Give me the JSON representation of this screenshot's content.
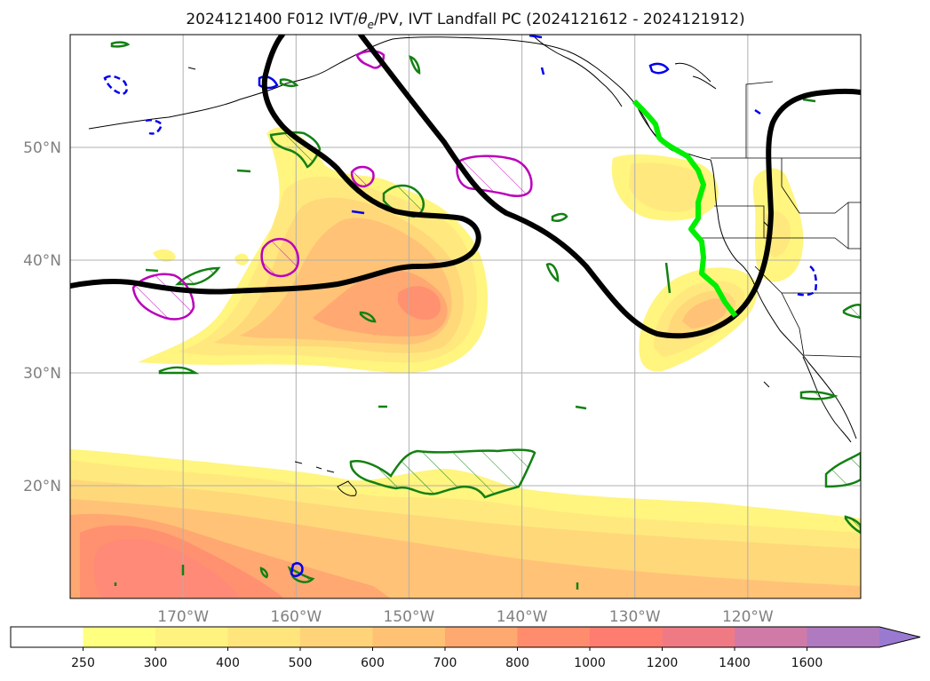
{
  "chart_data": {
    "type": "heatmap",
    "title": "2024121400 F012 IVT/θe/PV, IVT Landfall PC (2024121612 - 2024121912)",
    "title_parts": {
      "before": "2024121400 F012 IVT/",
      "theta": "θ",
      "sub": "e",
      "after": "/PV, IVT Landfall PC (2024121612 - 2024121912)"
    },
    "x_range": [
      -180,
      -110
    ],
    "y_range": [
      10,
      60
    ],
    "grid": true,
    "x_ticks": [
      {
        "value": -170,
        "label": "170°W"
      },
      {
        "value": -160,
        "label": "160°W"
      },
      {
        "value": -150,
        "label": "150°W"
      },
      {
        "value": -140,
        "label": "140°W"
      },
      {
        "value": -130,
        "label": "130°W"
      },
      {
        "value": -120,
        "label": "120°W"
      }
    ],
    "y_ticks": [
      {
        "value": 50,
        "label": "50°N"
      },
      {
        "value": 40,
        "label": "40°N"
      },
      {
        "value": 30,
        "label": "30°N"
      },
      {
        "value": 20,
        "label": "20°N"
      }
    ],
    "colorbar": {
      "levels": [
        "250",
        "300",
        "400",
        "500",
        "600",
        "700",
        "800",
        "1000",
        "1200",
        "1400",
        "1600"
      ],
      "colors": [
        "#ffff80",
        "#fff27f",
        "#ffe57c",
        "#ffd478",
        "#ffc274",
        "#ffa870",
        "#ff8c6c",
        "#ff7c70",
        "#f07a84",
        "#d07aa8",
        "#b07ac0",
        "#9a7ad0"
      ],
      "extend": "max"
    },
    "fill_colors": {
      "c250": "#fff57f",
      "c300": "#ffe97e",
      "c400": "#ffd87a",
      "c500": "#ffc276",
      "c600": "#ffa872",
      "c700": "#ff9070",
      "c800": "#ff8a78"
    },
    "line_colors": {
      "theta_e": "#000000",
      "landfall": "#00ee00",
      "pv_green": "#138013",
      "pv_magenta": "#bb00bb",
      "pv_blue": "#0000ee",
      "coast": "#000000"
    }
  }
}
